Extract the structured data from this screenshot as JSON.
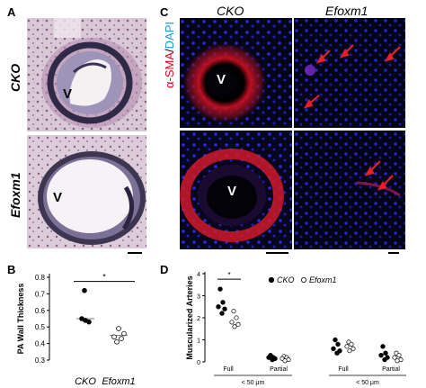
{
  "panels": {
    "a": {
      "letter": "A",
      "rows": [
        "CKO",
        "Efoxm1"
      ],
      "lumen_label": "V"
    },
    "b": {
      "letter": "B",
      "significance": "*"
    },
    "c": {
      "letter": "C",
      "columns": [
        "CKO",
        "Efoxm1"
      ],
      "stain_label_red": "α-SMA",
      "stain_label_sep": "/",
      "stain_label_blue": "DAPI",
      "lumen_label": "V"
    },
    "d": {
      "letter": "D",
      "significance": "*",
      "legend": [
        {
          "symbol": "filled-circle",
          "label": "CKO"
        },
        {
          "symbol": "open-circle",
          "label": "Efoxm1"
        }
      ]
    }
  },
  "chart_data": [
    {
      "id": "B",
      "type": "scatter",
      "title": "",
      "ylabel": "PA Wall Thickness",
      "xlabel": "",
      "categories": [
        "CKO",
        "Efoxm1"
      ],
      "ylim": [
        0.3,
        0.8
      ],
      "yticks": [
        "0.3",
        "0.4",
        "0.5",
        "0.6",
        "0.7",
        "0.8"
      ],
      "series": [
        {
          "name": "CKO",
          "marker": "filled",
          "values": [
            0.72,
            0.55,
            0.54,
            0.53
          ]
        },
        {
          "name": "Efoxm1",
          "marker": "open",
          "values": [
            0.49,
            0.46,
            0.44,
            0.43,
            0.41
          ]
        }
      ],
      "means": [
        0.55,
        0.45
      ],
      "significance": "*"
    },
    {
      "id": "D",
      "type": "scatter",
      "title": "",
      "ylabel": "Muscularized Arteries",
      "xlabel": "",
      "ylim": [
        0,
        4
      ],
      "yticks": [
        "0",
        "1",
        "2",
        "3",
        "4"
      ],
      "groups": [
        {
          "label": "Full",
          "cko": [
            3.3,
            2.7,
            2.5,
            2.4,
            2.2
          ],
          "efoxm1": [
            2.3,
            2.0,
            1.8,
            1.7,
            1.6
          ]
        },
        {
          "label": "Partial",
          "cko": [
            0.3,
            0.2,
            0.2,
            0.15,
            0.1
          ],
          "efoxm1": [
            0.25,
            0.2,
            0.15,
            0.1,
            0.05
          ]
        },
        {
          "label": "Full",
          "cko": [
            1.0,
            0.8,
            0.6,
            0.5,
            0.4
          ],
          "efoxm1": [
            0.9,
            0.8,
            0.7,
            0.6,
            0.5
          ]
        },
        {
          "label": "Partial",
          "cko": [
            0.7,
            0.4,
            0.3,
            0.2,
            0.1
          ],
          "efoxm1": [
            0.4,
            0.3,
            0.2,
            0.1,
            0.05
          ]
        }
      ],
      "size_labels": [
        "< 50 μm",
        "< 50 μm"
      ],
      "significance": "*"
    }
  ]
}
